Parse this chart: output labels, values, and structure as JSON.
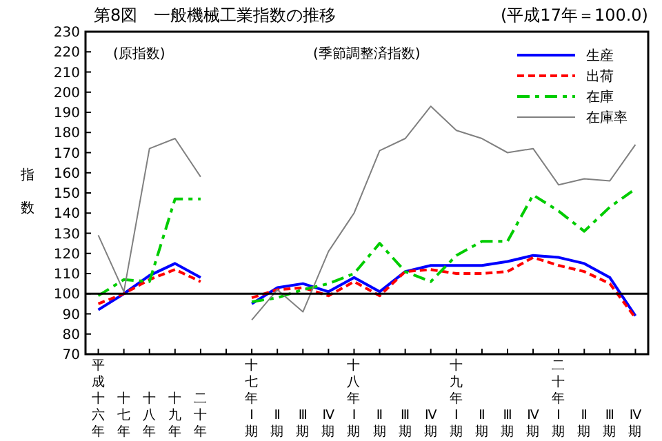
{
  "chart_data": {
    "type": "line",
    "title": "第8図　一般機械工業指数の推移",
    "subtitle": "(平成17年＝100.0)",
    "ylabel": "指数",
    "annotations": [
      "(原指数)",
      "(季節調整済指数)"
    ],
    "categories": [
      "平成十六年",
      "十七年",
      "十八年",
      "十九年",
      "二十年",
      null,
      "十七年Ⅰ期",
      "Ⅱ期",
      "Ⅲ期",
      "Ⅳ期",
      "十八年Ⅰ期",
      "Ⅱ期",
      "Ⅲ期",
      "Ⅳ期",
      "十九年Ⅰ期",
      "Ⅱ期",
      "Ⅲ期",
      "Ⅳ期",
      "二十年Ⅰ期",
      "Ⅱ期",
      "Ⅲ期",
      "Ⅳ期"
    ],
    "series": [
      {
        "name": "生産",
        "color": "#0000ff",
        "line_style": "solid",
        "values": [
          92,
          100,
          109,
          115,
          108,
          null,
          95,
          103,
          105,
          101,
          108,
          101,
          111,
          114,
          114,
          114,
          116,
          119,
          118,
          115,
          108,
          89
        ]
      },
      {
        "name": "出荷",
        "color": "#ff0000",
        "line_style": "dashed",
        "values": [
          95,
          100,
          107,
          112,
          106,
          null,
          98,
          102,
          103,
          99,
          106,
          99,
          111,
          112,
          110,
          110,
          111,
          118,
          114,
          111,
          105,
          88
        ]
      },
      {
        "name": "在庫",
        "color": "#00cc00",
        "line_style": "dashdot",
        "values": [
          99,
          107,
          106,
          147,
          147,
          null,
          96,
          98,
          102,
          105,
          110,
          125,
          111,
          106,
          119,
          126,
          126,
          149,
          141,
          131,
          143,
          152
        ]
      },
      {
        "name": "在庫率",
        "color": "#808080",
        "line_style": "solid",
        "values": [
          129,
          101,
          172,
          177,
          158,
          null,
          87,
          102,
          91,
          121,
          140,
          171,
          177,
          193,
          181,
          177,
          170,
          172,
          154,
          157,
          156,
          174
        ]
      }
    ],
    "ylim": [
      70,
      230
    ],
    "yticks": [
      70,
      80,
      90,
      100,
      110,
      120,
      130,
      140,
      150,
      160,
      170,
      180,
      190,
      200,
      210,
      220,
      230
    ],
    "ref_lines": [
      {
        "axis": "y",
        "value": 100,
        "color": "#000000"
      }
    ],
    "grid": false,
    "legend": "top right"
  }
}
